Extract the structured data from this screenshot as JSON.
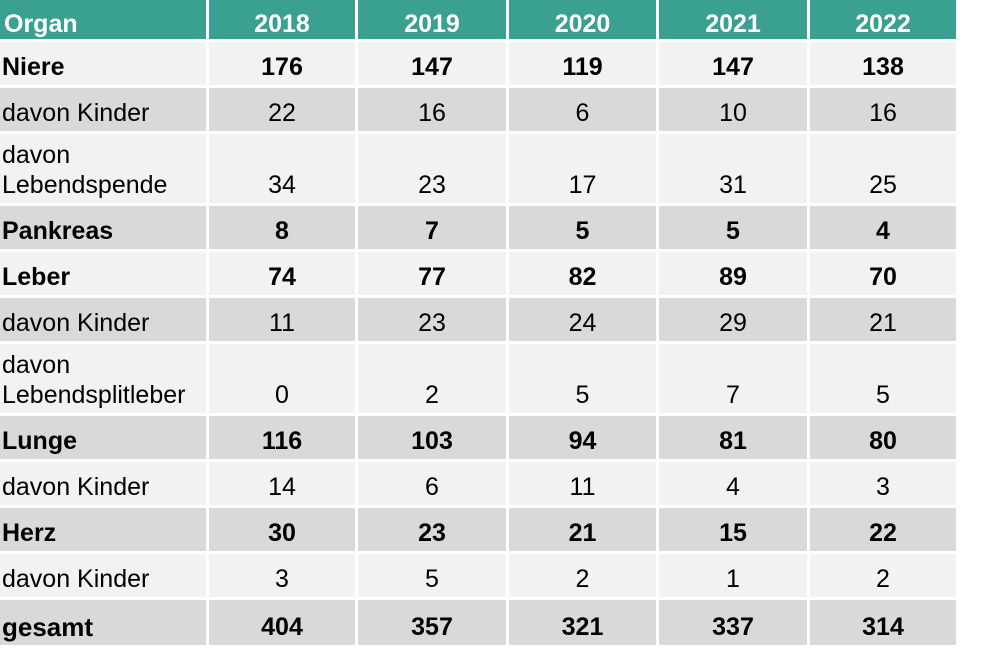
{
  "table": {
    "header": {
      "organ": "Organ",
      "years": [
        "2018",
        "2019",
        "2020",
        "2021",
        "2022"
      ]
    },
    "rows": [
      {
        "label": "Niere",
        "values": [
          "176",
          "147",
          "119",
          "147",
          "138"
        ]
      },
      {
        "label": "davon Kinder",
        "values": [
          "22",
          "16",
          "6",
          "10",
          "16"
        ]
      },
      {
        "label": "davon\nLebendspende",
        "values": [
          "34",
          "23",
          "17",
          "31",
          "25"
        ]
      },
      {
        "label": "Pankreas",
        "values": [
          "8",
          "7",
          "5",
          "5",
          "4"
        ]
      },
      {
        "label": "Leber",
        "values": [
          "74",
          "77",
          "82",
          "89",
          "70"
        ]
      },
      {
        "label": "davon Kinder",
        "values": [
          "11",
          "23",
          "24",
          "29",
          "21"
        ]
      },
      {
        "label": "davon\nLebendsplitleber",
        "values": [
          "0",
          "2",
          "5",
          "7",
          "5"
        ]
      },
      {
        "label": "Lunge",
        "values": [
          "116",
          "103",
          "94",
          "81",
          "80"
        ]
      },
      {
        "label": "davon Kinder",
        "values": [
          "14",
          "6",
          "11",
          "4",
          "3"
        ]
      },
      {
        "label": "Herz",
        "values": [
          "30",
          "23",
          "21",
          "15",
          "22"
        ]
      },
      {
        "label": "davon Kinder",
        "values": [
          "3",
          "5",
          "2",
          "1",
          "2"
        ]
      },
      {
        "label": "gesamt",
        "values": [
          "404",
          "357",
          "321",
          "337",
          "314"
        ]
      }
    ]
  }
}
